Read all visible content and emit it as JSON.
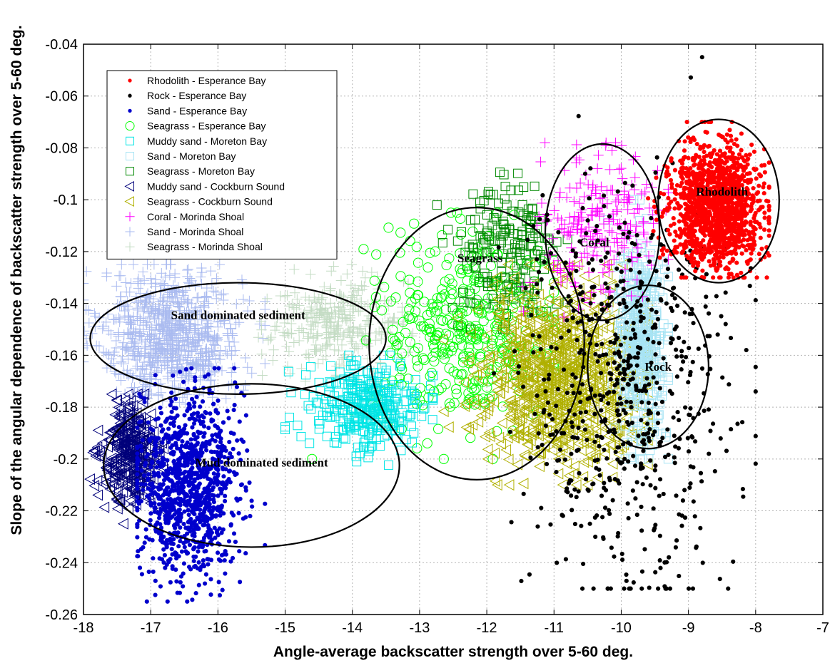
{
  "chart_data": {
    "type": "scatter",
    "title": "",
    "xlabel": "Angle-average backscatter strength over 5-60 deg.",
    "ylabel": "Slope of the angular dependence of backscatter strength over 5-60 deg.",
    "xlim": [
      -18,
      -7
    ],
    "ylim": [
      -0.26,
      -0.04
    ],
    "x_ticks": [
      -18,
      -17,
      -16,
      -15,
      -14,
      -13,
      -12,
      -11,
      -10,
      -9,
      -8,
      -7
    ],
    "y_ticks": [
      -0.26,
      -0.24,
      -0.22,
      -0.2,
      -0.18,
      -0.16,
      -0.14,
      -0.12,
      -0.1,
      -0.08,
      -0.06,
      -0.04
    ],
    "grid": true,
    "legend_position": "top-left",
    "series": [
      {
        "name": "Rhodolith - Esperance Bay",
        "marker": "dot",
        "color": "#ff0000",
        "x_mean": -8.6,
        "y_mean": -0.103,
        "x_spread": [
          -9.6,
          -7.8
        ],
        "y_spread": [
          -0.13,
          -0.07
        ],
        "count": 1400
      },
      {
        "name": "Rock - Esperance Bay",
        "marker": "dot",
        "color": "#000000",
        "x_mean": -9.95,
        "y_mean": -0.175,
        "x_spread": [
          -12,
          -8
        ],
        "y_spread": [
          -0.25,
          -0.045
        ],
        "count": 650
      },
      {
        "name": "Sand - Esperance Bay",
        "marker": "dot",
        "color": "#0000cc",
        "x_mean": -16.45,
        "y_mean": -0.21,
        "x_spread": [
          -17.2,
          -15.3
        ],
        "y_spread": [
          -0.255,
          -0.165
        ],
        "count": 1100
      },
      {
        "name": "Seagrass - Esperance Bay",
        "marker": "circle",
        "color": "#00ff00",
        "x_mean": -12.3,
        "y_mean": -0.15,
        "x_spread": [
          -14.6,
          -11
        ],
        "y_spread": [
          -0.2,
          -0.105
        ],
        "count": 380
      },
      {
        "name": "Muddy sand - Moreton Bay",
        "marker": "square",
        "color": "#00e5e5",
        "x_mean": -13.8,
        "y_mean": -0.18,
        "x_spread": [
          -15,
          -12.8
        ],
        "y_spread": [
          -0.205,
          -0.16
        ],
        "count": 330
      },
      {
        "name": "Sand - Moreton Bay",
        "marker": "square",
        "color": "#a8e4f4",
        "x_mean": -9.7,
        "y_mean": -0.155,
        "x_spread": [
          -10.2,
          -9.3
        ],
        "y_spread": [
          -0.2,
          -0.1
        ],
        "count": 450
      },
      {
        "name": "Seagrass - Moreton Bay",
        "marker": "square",
        "color": "#008800",
        "x_mean": -11.7,
        "y_mean": -0.122,
        "x_spread": [
          -12.8,
          -10.8
        ],
        "y_spread": [
          -0.15,
          -0.072
        ],
        "count": 190
      },
      {
        "name": "Muddy sand - Cockburn Sound",
        "marker": "triangle-left",
        "color": "#00007a",
        "x_mean": -17.3,
        "y_mean": -0.198,
        "x_spread": [
          -17.9,
          -16.8
        ],
        "y_spread": [
          -0.225,
          -0.175
        ],
        "count": 340
      },
      {
        "name": "Seagrass - Cockburn Sound",
        "marker": "triangle-left",
        "color": "#b0b000",
        "x_mean": -10.9,
        "y_mean": -0.168,
        "x_spread": [
          -12.8,
          -9.6
        ],
        "y_spread": [
          -0.21,
          -0.125
        ],
        "count": 900
      },
      {
        "name": "Coral - Morinda Shoal",
        "marker": "plus",
        "color": "#ff00ff",
        "x_mean": -10.3,
        "y_mean": -0.11,
        "x_spread": [
          -11.6,
          -9.3
        ],
        "y_spread": [
          -0.15,
          -0.078
        ],
        "count": 230
      },
      {
        "name": "Sand - Morinda Shoal",
        "marker": "plus",
        "color": "#aabbf0",
        "x_mean": -16.7,
        "y_mean": -0.152,
        "x_spread": [
          -18,
          -15.3
        ],
        "y_spread": [
          -0.19,
          -0.125
        ],
        "count": 800
      },
      {
        "name": "Seagrass - Morinda Shoal",
        "marker": "plus",
        "color": "#c4dcc4",
        "x_mean": -14.2,
        "y_mean": -0.148,
        "x_spread": [
          -15.5,
          -12.8
        ],
        "y_spread": [
          -0.17,
          -0.125
        ],
        "count": 320
      }
    ],
    "annotations": [
      {
        "text": "Sand dominated sediment",
        "x": -15.7,
        "y": -0.146
      },
      {
        "text": "Mud dominated sediment",
        "x": -15.35,
        "y": -0.203
      },
      {
        "text": "Seagrass",
        "x": -12.1,
        "y": -0.124
      },
      {
        "text": "Coral",
        "x": -10.4,
        "y": -0.118
      },
      {
        "text": "Rhodolith",
        "x": -8.5,
        "y": -0.0985
      },
      {
        "text": "Rock",
        "x": -9.45,
        "y": -0.166
      }
    ],
    "ellipses": [
      {
        "name": "sand-dominated-ellipse",
        "cx": -15.7,
        "cy": -0.1535,
        "rx": 2.2,
        "ry": 0.0215
      },
      {
        "name": "mud-dominated-ellipse",
        "cx": -15.5,
        "cy": -0.2025,
        "rx": 2.2,
        "ry": 0.0315
      },
      {
        "name": "seagrass-ellipse",
        "cx": -12.15,
        "cy": -0.1555,
        "rx": 1.6,
        "ry": 0.0525
      },
      {
        "name": "coral-ellipse",
        "cx": -10.28,
        "cy": -0.1125,
        "rx": 0.85,
        "ry": 0.034
      },
      {
        "name": "rhodolith-ellipse",
        "cx": -8.55,
        "cy": -0.1005,
        "rx": 0.9,
        "ry": 0.0315
      },
      {
        "name": "rock-ellipse",
        "cx": -9.6,
        "cy": -0.1645,
        "rx": 0.9,
        "ry": 0.0315
      }
    ]
  }
}
